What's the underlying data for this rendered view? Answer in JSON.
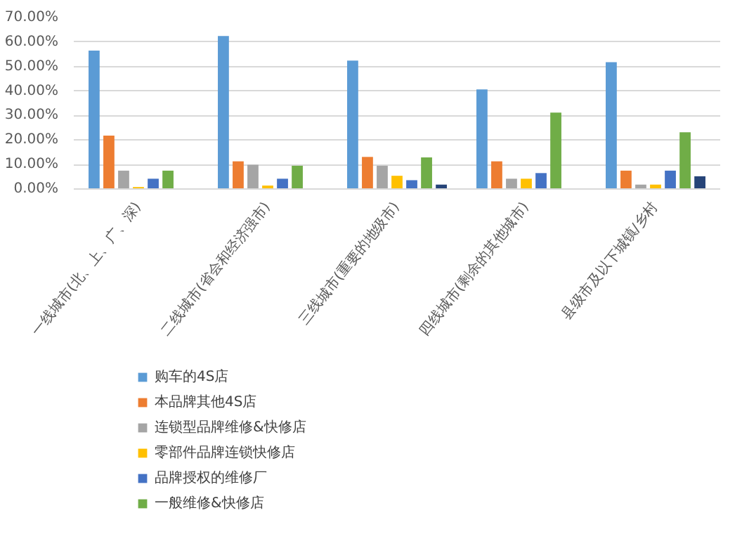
{
  "chart_data": {
    "type": "bar",
    "categories": [
      "一线城市(北、上、广、深)",
      "二线城市(省会和经济强市)",
      "三线城市(重要的地级市)",
      "四线城市(剩余的其他城市)",
      "县级市及以下城镇/乡村"
    ],
    "series": [
      {
        "name": "购车的4S店",
        "color": "#5b9bd5",
        "values": [
          56.5,
          62.5,
          52.4,
          40.7,
          51.8
        ]
      },
      {
        "name": "本品牌其他4S店",
        "color": "#ed7d31",
        "values": [
          21.8,
          11.3,
          13.1,
          11.3,
          7.5
        ]
      },
      {
        "name": "连锁型品牌维修&快修店",
        "color": "#a5a5a5",
        "values": [
          7.5,
          9.9,
          9.5,
          4.2,
          1.8
        ]
      },
      {
        "name": "零部件品牌连锁快修店",
        "color": "#ffc000",
        "values": [
          0.8,
          1.4,
          5.4,
          4.2,
          1.8
        ]
      },
      {
        "name": "品牌授权的维修厂",
        "color": "#4472c4",
        "values": [
          4.2,
          4.2,
          3.6,
          6.5,
          7.5
        ]
      },
      {
        "name": "一般维修&快修店",
        "color": "#70ad47",
        "values": [
          7.5,
          9.5,
          12.9,
          31.2,
          23.2
        ]
      },
      {
        "color": "#264478",
        "values": [
          null,
          null,
          1.8,
          null,
          5.2
        ]
      }
    ],
    "ylim": [
      0,
      70
    ],
    "yticks": [
      {
        "value": 0,
        "label": "0.00%"
      },
      {
        "value": 10,
        "label": "10.00%"
      },
      {
        "value": 20,
        "label": "20.00%"
      },
      {
        "value": 30,
        "label": "30.00%"
      },
      {
        "value": 40,
        "label": "40.00%"
      },
      {
        "value": 50,
        "label": "50.00%"
      },
      {
        "value": 60,
        "label": "60.00%"
      },
      {
        "value": 70,
        "label": "70.00%"
      }
    ],
    "grid": "y",
    "legend": "bottom"
  }
}
